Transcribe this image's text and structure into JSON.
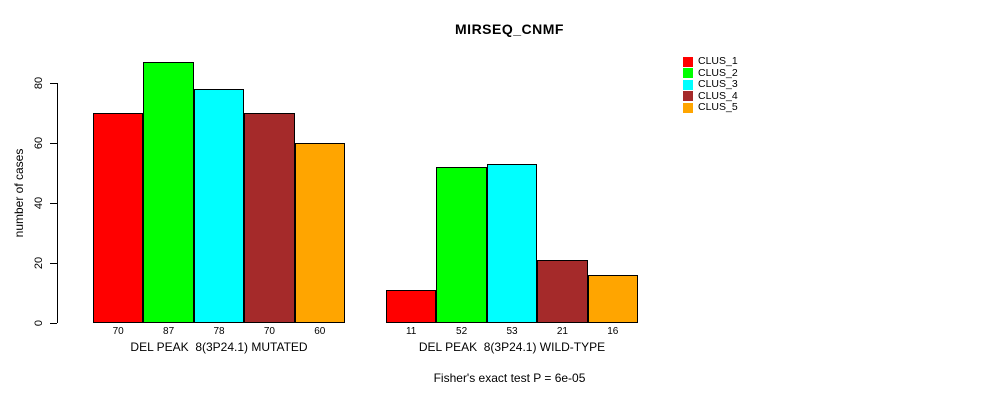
{
  "title": "MIRSEQ_CNMF",
  "footnote": "Fisher's exact test P = 6e-05",
  "chart_data": {
    "type": "bar",
    "title": "MIRSEQ_CNMF",
    "xlabel": "",
    "ylabel": "number of cases",
    "ylim": [
      0,
      87
    ],
    "y_ticks": [
      0,
      20,
      40,
      60,
      80
    ],
    "grid": false,
    "legend_position": "right",
    "value_labels_shown": true,
    "categories": [
      "DEL PEAK  8(3P24.1) MUTATED",
      "DEL PEAK  8(3P24.1) WILD-TYPE"
    ],
    "series": [
      {
        "name": "CLUS_1",
        "color": "#FF0000",
        "values": [
          70,
          11
        ]
      },
      {
        "name": "CLUS_2",
        "color": "#00FF00",
        "values": [
          87,
          52
        ]
      },
      {
        "name": "CLUS_3",
        "color": "#00FFFF",
        "values": [
          78,
          53
        ]
      },
      {
        "name": "CLUS_4",
        "color": "#A52A2A",
        "values": [
          70,
          21
        ]
      },
      {
        "name": "CLUS_5",
        "color": "#FFA500",
        "values": [
          60,
          16
        ]
      }
    ],
    "annotation": "Fisher's exact test P = 6e-05"
  }
}
